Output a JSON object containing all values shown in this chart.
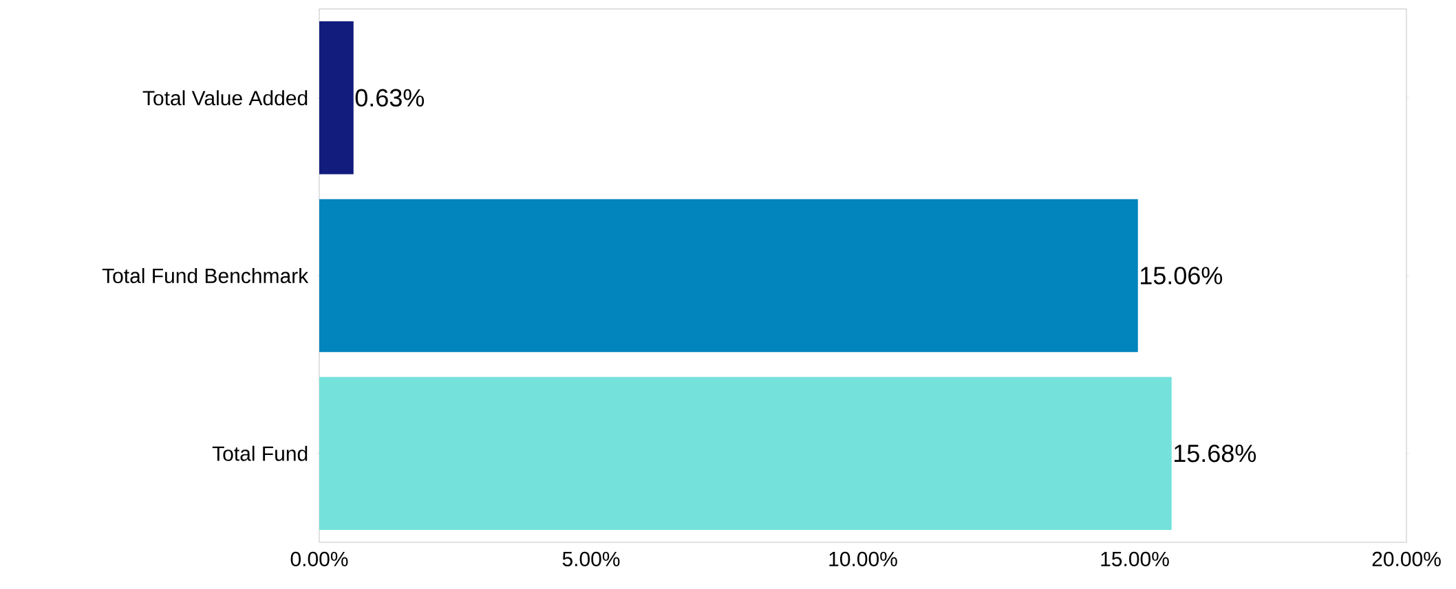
{
  "chart_data": {
    "type": "bar",
    "orientation": "horizontal",
    "categories": [
      "Total Value Added",
      "Total Fund Benchmark",
      "Total Fund"
    ],
    "values": [
      0.63,
      15.06,
      15.68
    ],
    "colors": [
      "#121c7c",
      "#0284bc",
      "#74e2da"
    ],
    "value_labels": [
      "0.63%",
      "15.06%",
      "15.68%"
    ],
    "xlim": [
      0,
      20
    ],
    "xticks": [
      {
        "value": 0,
        "label": "0.00%"
      },
      {
        "value": 5,
        "label": "5.00%"
      },
      {
        "value": 10,
        "label": "10.00%"
      },
      {
        "value": 15,
        "label": "15.00%"
      },
      {
        "value": 20,
        "label": "20.00%"
      }
    ]
  }
}
